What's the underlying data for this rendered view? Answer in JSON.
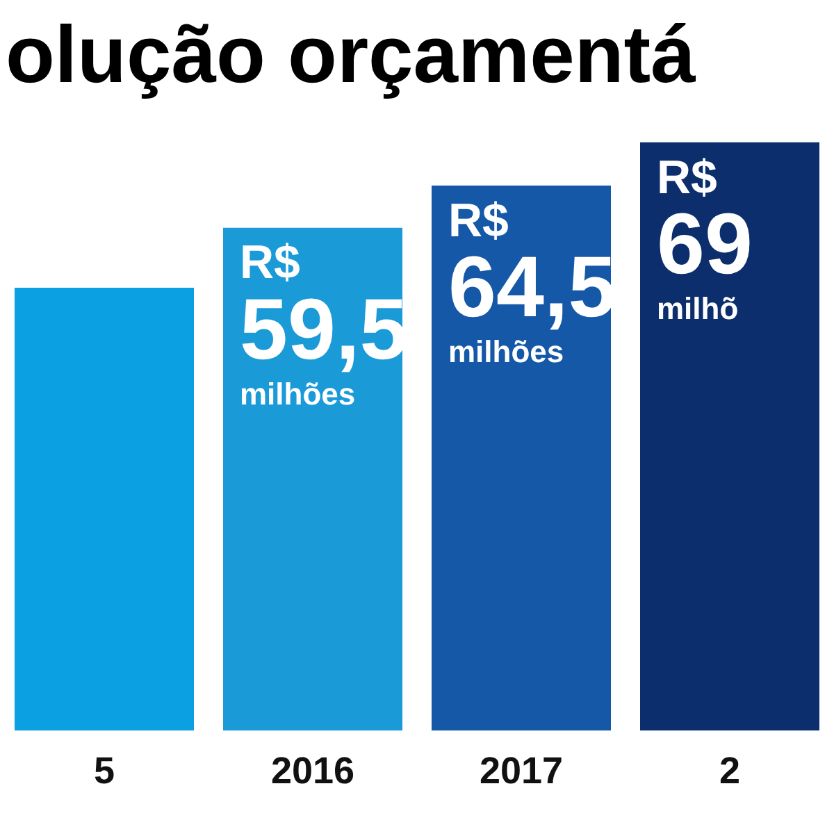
{
  "chart_data": {
    "type": "bar",
    "title": "olução orçamentá",
    "categories": [
      "5",
      "2016",
      "2017",
      "2"
    ],
    "values": [
      52.4,
      59.5,
      64.5,
      69.6
    ],
    "colors": [
      "#0aa0e2",
      "#1b9ad8",
      "#1558a8",
      "#0c2e6c"
    ],
    "value_labels": [
      null,
      "R$\n59,5\nmilhões",
      "R$\n64,5\nmilhões",
      "R$\n69\nmilhõ"
    ],
    "grid": false,
    "legend": false
  }
}
